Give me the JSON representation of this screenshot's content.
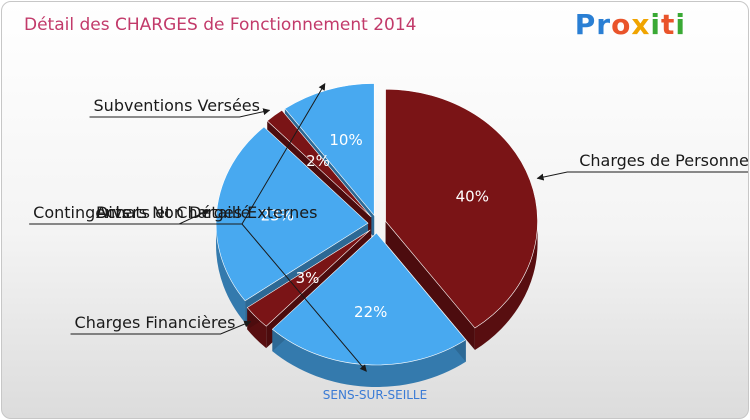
{
  "title": "Détail des CHARGES de Fonctionnement 2014",
  "logo": {
    "text": "Proxiti"
  },
  "footer": {
    "commune": "SENS-SUR-SEILLE"
  },
  "colors": {
    "title": "#c23a6a",
    "dark_red": "#7a1416",
    "light_blue": "#48a9f0"
  },
  "chart_data": {
    "type": "pie",
    "title": "Détail des CHARGES de Fonctionnement 2014",
    "slices": [
      {
        "label": "Charges de Personnel",
        "value": 40,
        "percent_label": "40%",
        "color": "#7a1416"
      },
      {
        "label": "Achats et Charges Externes",
        "value": 22,
        "percent_label": "22%",
        "color": "#48a9f0"
      },
      {
        "label": "Charges Financières",
        "value": 3,
        "percent_label": "3%",
        "color": "#7a1416"
      },
      {
        "label": "Contingents",
        "value": 23,
        "percent_label": "23%",
        "color": "#48a9f0"
      },
      {
        "label": "Subventions Versées",
        "value": 2,
        "percent_label": "2%",
        "color": "#7a1416"
      },
      {
        "label": "Divers Non Détaillé",
        "value": 10,
        "percent_label": "10%",
        "color": "#48a9f0"
      }
    ]
  }
}
